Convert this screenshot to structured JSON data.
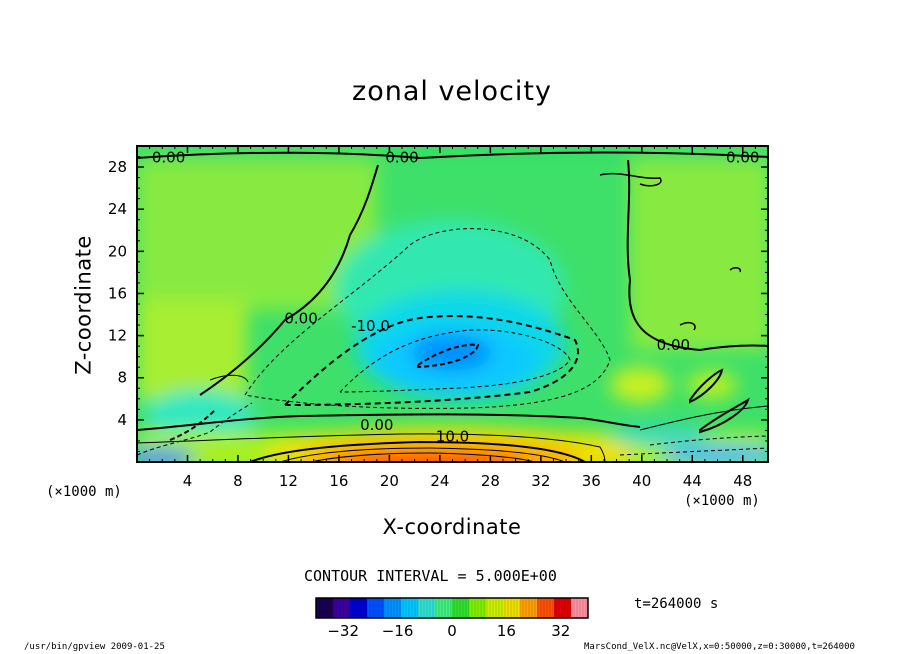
{
  "chart_data": {
    "type": "heatmap",
    "title": "zonal velocity",
    "xlabel": "X-coordinate",
    "ylabel": "Z-coordinate",
    "x_unit_label": "(×1000 m)",
    "y_unit_label": "(×1000 m)",
    "xlim": [
      0,
      50
    ],
    "ylim": [
      0,
      30
    ],
    "x_ticks": [
      4,
      8,
      12,
      16,
      20,
      24,
      28,
      32,
      36,
      40,
      44,
      48
    ],
    "y_ticks": [
      4,
      8,
      12,
      16,
      20,
      24,
      28
    ],
    "contour_interval_label": "CONTOUR INTERVAL = 5.000E+00",
    "contour_labels": [
      {
        "text": "0.00",
        "x": 2.5,
        "z": 28.9
      },
      {
        "text": "0.00",
        "x": 21.0,
        "z": 28.9
      },
      {
        "text": "0.00",
        "x": 48.0,
        "z": 28.9
      },
      {
        "text": "0.00",
        "x": 13.0,
        "z": 13.6
      },
      {
        "text": "-10.0",
        "x": 18.5,
        "z": 12.9
      },
      {
        "text": "0.00",
        "x": 42.5,
        "z": 11.1
      },
      {
        "text": "0.00",
        "x": 19.0,
        "z": 3.5
      },
      {
        "text": "10.0",
        "x": 25.0,
        "z": 2.4
      }
    ],
    "colorbar": {
      "range": [
        -40,
        40
      ],
      "ticks": [
        -32,
        -16,
        0,
        16,
        32
      ],
      "colors": [
        "#1a0050",
        "#3a00a0",
        "#0000d0",
        "#0050ff",
        "#0090ff",
        "#00c8ff",
        "#30e0d0",
        "#40f080",
        "#30e030",
        "#80f000",
        "#c8f000",
        "#f0e000",
        "#ffa000",
        "#ff5000",
        "#e00000",
        "#ff90a0"
      ]
    },
    "time_label": "t=264000 s",
    "footer_left": "/usr/bin/gpview  2009-01-25",
    "footer_right": "MarsCond_VelX.nc@VelX,x=0:50000,z=0:30000,t=264000"
  }
}
